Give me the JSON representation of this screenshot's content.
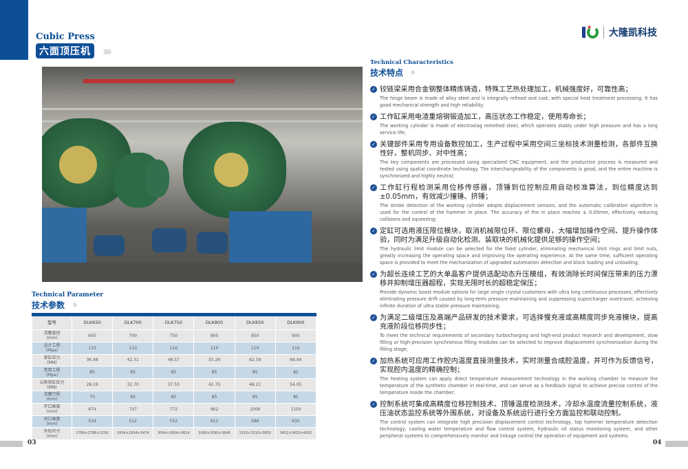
{
  "left": {
    "title_en": "Cubic Press",
    "title_cn": "六面顶压机",
    "param_title_en": "Technical Parameter",
    "param_title_cn": "技术参数",
    "page_number": "03"
  },
  "table": {
    "header": [
      "型号",
      "DLK650",
      "DLK700",
      "DLK750",
      "DLK800",
      "DLK850",
      "DLK900"
    ],
    "rows": [
      {
        "label": "活塞直径",
        "unit": "(mm)",
        "values": [
          "650",
          "700",
          "750",
          "800",
          "850",
          "900"
        ]
      },
      {
        "label": "设计工程",
        "unit": "(Mpa)",
        "values": [
          "110",
          "110",
          "110",
          "110",
          "110",
          "110"
        ]
      },
      {
        "label": "单缸压力",
        "unit": "(MN)",
        "values": [
          "36.48",
          "42.31",
          "48.57",
          "55.26",
          "62.39",
          "69.94"
        ]
      },
      {
        "label": "常用工程",
        "unit": "(Mpa)",
        "values": [
          "85",
          "85",
          "85",
          "85",
          "85",
          "85"
        ]
      },
      {
        "label": "公称单缸压力",
        "unit": "(MN)",
        "values": [
          "28.19",
          "32.70",
          "37.53",
          "42.70",
          "48.21",
          "54.05"
        ]
      },
      {
        "label": "活塞行程",
        "unit": "(mm)",
        "values": [
          "70",
          "85",
          "85",
          "85",
          "85",
          "85"
        ]
      },
      {
        "label": "开口高度",
        "unit": "(mm)",
        "values": [
          "674",
          "707",
          "772",
          "962",
          "1006",
          "1100"
        ]
      },
      {
        "label": "闭口高度",
        "unit": "(mm)",
        "values": [
          "534",
          "522",
          "552",
          "612",
          "586",
          "630"
        ]
      },
      {
        "label": "外形尺寸",
        "unit": "(mm)",
        "values": [
          "2786×2786×3230",
          "2934×2934×3474",
          "3064×3064×3614",
          "3090×3090×3846",
          "3310×3310×3850",
          "3452×3452×4002"
        ]
      }
    ]
  },
  "right": {
    "logo_text": "大隆凯科技",
    "feat_title_en": "Technical Characteristics",
    "feat_title_cn": "技术特点",
    "page_number": "04",
    "features": [
      {
        "cn": "铰链梁采用合金钢整体精炼铸造，特殊工艺热处理加工，机械强度好，可靠性高；",
        "en": "The hinge beam is made of alloy steel and is integrally refined and cast, with special heat treatment processing. It has good mechanical strength and high reliability;"
      },
      {
        "cn": "工作缸采用电渣重熔钢锻造加工，高压状态工作稳定，使用寿命长；",
        "en": "The working cylinder is made of electroslag remelted steel, which operates stably under high pressure and has a long service life;"
      },
      {
        "cn": "关键部件采用专用设备数控加工，生产过程中采用空间三坐标技术测量检测，各部件互换性好，整机同步、对中性高；",
        "en": "The key components are processed using specialized CNC equipment, and the production process is measured and tested using spatial coordinate technology. The interchangeability of the components is good, and the entire machine is synchronized and highly neutral;"
      },
      {
        "cn": "工作缸行程检测采用位移传感器，顶锤到位控制应用自动校准算法，到位精度达到±0.05mm，有效减少撞锤、挤锤；",
        "en": "The stroke detection of the working cylinder adopts displacement sensors, and the automatic calibration algorithm is used for the control of the hammer in place. The accuracy of the in place reaches ± 0.05mm, effectively reducing collisions and squeezing;"
      },
      {
        "cn": "定缸可选用液压限位模块，取消机械限位环、限位螺母，大幅增加操作空间、提升操作体验，同时为满足升级自动化检测、装取块的机械化提供足够的操作空间；",
        "en": "The hydraulic limit module can be selected for the fixed cylinder, eliminating mechanical limit rings and limit nuts, greatly increasing the operating space and improving the operating experience. At the same time, sufficient operating space is provided to meet the mechanization of upgraded automation detection and block loading and unloading;"
      },
      {
        "cn": "为超长连续工艺的大单晶客户提供选配动态升压模组，有效消除长时间保压带来的压力漂移并抑制增压器超程，实现无限时长的超稳定保压；",
        "en": "Provide dynamic boost module options for large single crystal customers with ultra long continuous processes, effectively eliminating pressure drift caused by long-term pressure maintaining and suppressing supercharger overtravel, achieving infinite duration of ultra stable pressure maintaining;"
      },
      {
        "cn": "为满足二级增压及高端产品研发的技术要求，可选择慢充液或高精度同步充液模块，提高充液阶段位移同步性；",
        "en": "To meet the technical requirements of secondary turbocharging and high-end product research and development, slow filling or high-precision synchronous filling modules can be selected to improve displacement synchronization during the filling stage;"
      },
      {
        "cn": "加热系统可应用工作腔内温度直接测量技术，实时测量合成腔温度，并可作为反馈信号，实现腔内温度的精确控制；",
        "en": "The heating system can apply direct temperature measurement technology in the working chamber to measure the temperature of the synthetic chamber in real-time, and can serve as a feedback signal to achieve precise control of the temperature inside the chamber;"
      },
      {
        "cn": "控制系统可集成高精度位移控制技术、顶锤温度检测技术，冷却水温度流量控制系统，液压油状态监控系统等外围系统，对设备及系统运行进行全方面监控和联动控制。",
        "en": "The control system can integrate high precision displacement control technology, top hammer temperature detection technology, cooling water temperature and flow control system, hydraulic oil status monitoring system, and other peripheral systems to comprehensively monitor and linkage control the operation of equipment and systems."
      }
    ]
  },
  "colors": {
    "brand_blue": "#0d4f97",
    "table_blue_row": "#c6d8e6",
    "table_gray_row": "#e7e7e7",
    "logo_green": "#2a9a3a"
  },
  "icons": {
    "bullet": "check-circle-icon",
    "decor": "chevron-arrows-icon"
  }
}
